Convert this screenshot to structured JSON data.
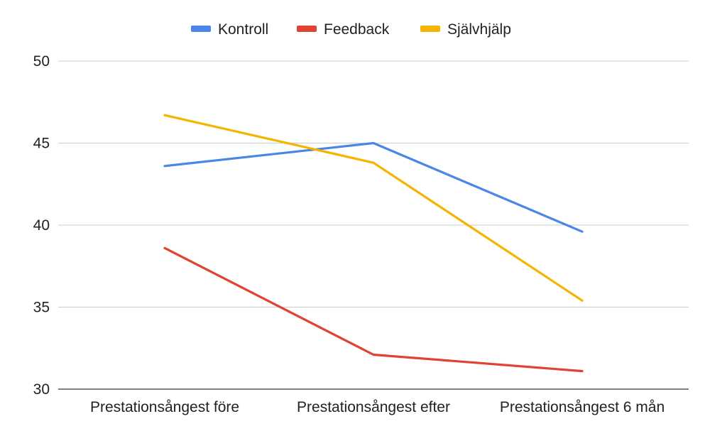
{
  "chart_data": {
    "type": "line",
    "title": "",
    "xlabel": "",
    "ylabel": "",
    "categories": [
      "Prestationsångest före",
      "Prestationsångest efter",
      "Prestationsångest 6 mån"
    ],
    "series": [
      {
        "name": "Kontroll",
        "color": "#4a86e8",
        "values": [
          43.6,
          45.0,
          39.6
        ]
      },
      {
        "name": "Feedback",
        "color": "#e04234",
        "values": [
          38.6,
          32.1,
          31.1
        ]
      },
      {
        "name": "Självhjälp",
        "color": "#f4b400",
        "values": [
          46.7,
          43.8,
          35.4
        ]
      }
    ],
    "ylim": [
      30,
      50
    ],
    "yticks": [
      30,
      35,
      40,
      45,
      50
    ],
    "grid": true,
    "legend_position": "top-center"
  }
}
